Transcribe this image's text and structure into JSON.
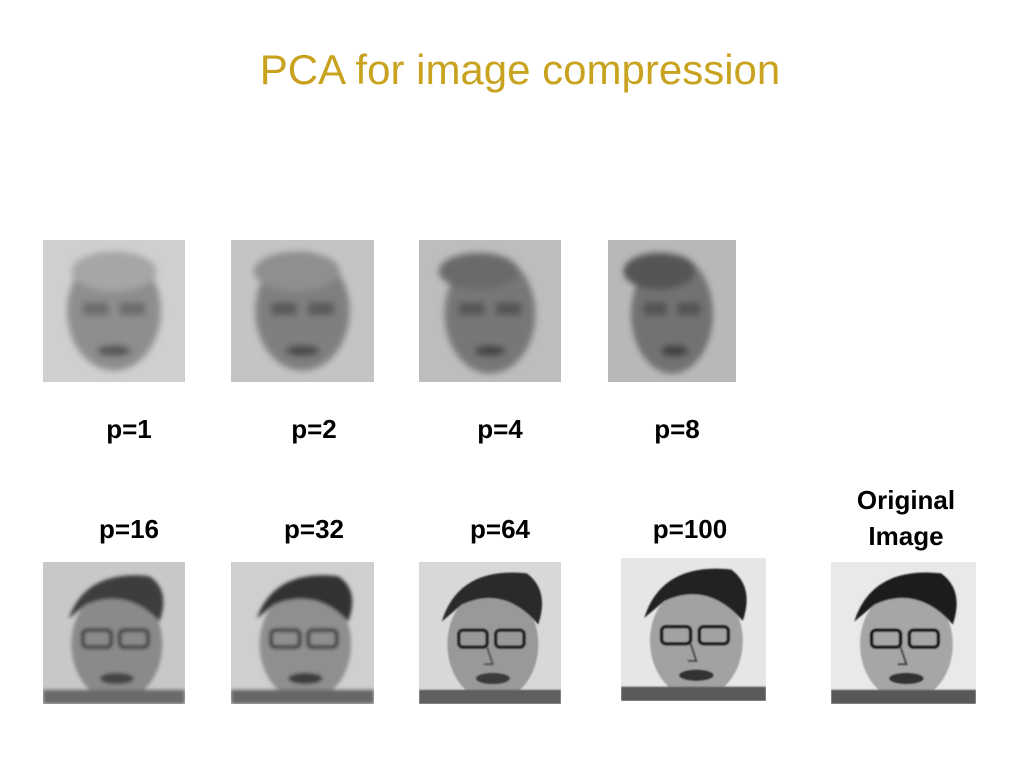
{
  "slide": {
    "title": "PCA for image compression"
  },
  "rows": [
    {
      "items": [
        {
          "label": "p=1"
        },
        {
          "label": "p=2"
        },
        {
          "label": "p=4"
        },
        {
          "label": "p=8"
        }
      ]
    },
    {
      "items": [
        {
          "label": "p=16"
        },
        {
          "label": "p=32"
        },
        {
          "label": "p=64"
        },
        {
          "label": "p=100"
        },
        {
          "label_line1": "Original",
          "label_line2": "Image"
        }
      ]
    }
  ]
}
